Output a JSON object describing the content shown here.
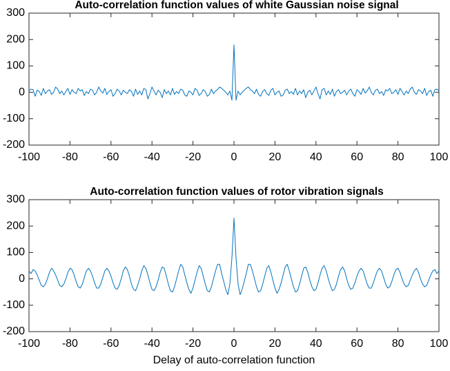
{
  "chart_data": [
    {
      "type": "line",
      "title": "Auto-correlation function values of white Gaussian noise signal",
      "xlim": [
        -100,
        100
      ],
      "ylim": [
        -200,
        300
      ],
      "xticks": [
        -100,
        -80,
        -60,
        -40,
        -20,
        0,
        20,
        40,
        60,
        80,
        100
      ],
      "yticks": [
        -200,
        -100,
        0,
        100,
        200,
        300
      ],
      "x": [
        -100,
        -99,
        -98,
        -97,
        -96,
        -95,
        -94,
        -93,
        -92,
        -91,
        -90,
        -89,
        -88,
        -87,
        -86,
        -85,
        -84,
        -83,
        -82,
        -81,
        -80,
        -79,
        -78,
        -77,
        -76,
        -75,
        -74,
        -73,
        -72,
        -71,
        -70,
        -69,
        -68,
        -67,
        -66,
        -65,
        -64,
        -63,
        -62,
        -61,
        -60,
        -59,
        -58,
        -57,
        -56,
        -55,
        -54,
        -53,
        -52,
        -51,
        -50,
        -49,
        -48,
        -47,
        -46,
        -45,
        -44,
        -43,
        -42,
        -41,
        -40,
        -39,
        -38,
        -37,
        -36,
        -35,
        -34,
        -33,
        -32,
        -31,
        -30,
        -29,
        -28,
        -27,
        -26,
        -25,
        -24,
        -23,
        -22,
        -21,
        -20,
        -19,
        -18,
        -17,
        -16,
        -15,
        -14,
        -13,
        -12,
        -11,
        -10,
        -9,
        -8,
        -7,
        -6,
        -5,
        -4,
        -3,
        -2,
        -1,
        0,
        1,
        2,
        3,
        4,
        5,
        6,
        7,
        8,
        9,
        10,
        11,
        12,
        13,
        14,
        15,
        16,
        17,
        18,
        19,
        20,
        21,
        22,
        23,
        24,
        25,
        26,
        27,
        28,
        29,
        30,
        31,
        32,
        33,
        34,
        35,
        36,
        37,
        38,
        39,
        40,
        41,
        42,
        43,
        44,
        45,
        46,
        47,
        48,
        49,
        50,
        51,
        52,
        53,
        54,
        55,
        56,
        57,
        58,
        59,
        60,
        61,
        62,
        63,
        64,
        65,
        66,
        67,
        68,
        69,
        70,
        71,
        72,
        73,
        74,
        75,
        76,
        77,
        78,
        79,
        80,
        81,
        82,
        83,
        84,
        85,
        86,
        87,
        88,
        89,
        90,
        91,
        92,
        93,
        94,
        95,
        96,
        97,
        98,
        99,
        100
      ],
      "series": [
        {
          "color": "#0072bd",
          "values": [
            5,
            12,
            10,
            -15,
            8,
            3,
            -12,
            15,
            -5,
            5,
            10,
            -8,
            0,
            20,
            12,
            -5,
            5,
            -10,
            3,
            15,
            -8,
            10,
            0,
            -5,
            15,
            5,
            10,
            -12,
            3,
            -5,
            12,
            8,
            -10,
            0,
            20,
            5,
            -3,
            15,
            -8,
            3,
            10,
            -15,
            -5,
            12,
            5,
            -10,
            8,
            0,
            -5,
            10,
            3,
            -15,
            12,
            -8,
            5,
            -10,
            15,
            10,
            -25,
            -5,
            20,
            5,
            -10,
            8,
            0,
            -20,
            10,
            -5,
            5,
            -10,
            15,
            -8,
            3,
            -5,
            12,
            8,
            -10,
            -15,
            5,
            0,
            -10,
            15,
            8,
            -12,
            -5,
            10,
            3,
            -15,
            -8,
            12,
            -5,
            5,
            10,
            20,
            15,
            8,
            0,
            -10,
            5,
            -30,
            180,
            -30,
            5,
            -10,
            0,
            8,
            15,
            20,
            10,
            5,
            -5,
            12,
            -8,
            -15,
            3,
            10,
            -5,
            -12,
            8,
            15,
            -10,
            0,
            5,
            -15,
            -10,
            8,
            12,
            -5,
            3,
            -8,
            15,
            -10,
            5,
            -5,
            10,
            -20,
            0,
            8,
            -10,
            5,
            20,
            -5,
            -25,
            10,
            15,
            -10,
            5,
            -8,
            12,
            -15,
            3,
            10,
            -5,
            0,
            8,
            -10,
            5,
            12,
            -5,
            -15,
            10,
            3,
            -8,
            15,
            -3,
            5,
            20,
            0,
            -10,
            8,
            12,
            -5,
            3,
            -12,
            10,
            5,
            15,
            -5,
            0,
            10,
            -8,
            15,
            3,
            -10,
            5,
            -5,
            12,
            20,
            0,
            -8,
            10,
            5,
            -5,
            15,
            -12,
            3,
            8,
            -15,
            10,
            12,
            5
          ]
        }
      ]
    },
    {
      "type": "line",
      "title": "Auto-correlation function values of rotor vibration signals",
      "xlabel": "Delay of auto-correlation function",
      "xlim": [
        -100,
        100
      ],
      "ylim": [
        -200,
        300
      ],
      "xticks": [
        -100,
        -80,
        -60,
        -40,
        -20,
        0,
        20,
        40,
        60,
        80,
        100
      ],
      "yticks": [
        -200,
        -100,
        0,
        100,
        200,
        300
      ],
      "x": [
        -100,
        -99,
        -98,
        -97,
        -96,
        -95,
        -94,
        -93,
        -92,
        -91,
        -90,
        -89,
        -88,
        -87,
        -86,
        -85,
        -84,
        -83,
        -82,
        -81,
        -80,
        -79,
        -78,
        -77,
        -76,
        -75,
        -74,
        -73,
        -72,
        -71,
        -70,
        -69,
        -68,
        -67,
        -66,
        -65,
        -64,
        -63,
        -62,
        -61,
        -60,
        -59,
        -58,
        -57,
        -56,
        -55,
        -54,
        -53,
        -52,
        -51,
        -50,
        -49,
        -48,
        -47,
        -46,
        -45,
        -44,
        -43,
        -42,
        -41,
        -40,
        -39,
        -38,
        -37,
        -36,
        -35,
        -34,
        -33,
        -32,
        -31,
        -30,
        -29,
        -28,
        -27,
        -26,
        -25,
        -24,
        -23,
        -22,
        -21,
        -20,
        -19,
        -18,
        -17,
        -16,
        -15,
        -14,
        -13,
        -12,
        -11,
        -10,
        -9,
        -8,
        -7,
        -6,
        -5,
        -4,
        -3,
        -2,
        -1,
        0,
        1,
        2,
        3,
        4,
        5,
        6,
        7,
        8,
        9,
        10,
        11,
        12,
        13,
        14,
        15,
        16,
        17,
        18,
        19,
        20,
        21,
        22,
        23,
        24,
        25,
        26,
        27,
        28,
        29,
        30,
        31,
        32,
        33,
        34,
        35,
        36,
        37,
        38,
        39,
        40,
        41,
        42,
        43,
        44,
        45,
        46,
        47,
        48,
        49,
        50,
        51,
        52,
        53,
        54,
        55,
        56,
        57,
        58,
        59,
        60,
        61,
        62,
        63,
        64,
        65,
        66,
        67,
        68,
        69,
        70,
        71,
        72,
        73,
        74,
        75,
        76,
        77,
        78,
        79,
        80,
        81,
        82,
        83,
        84,
        85,
        86,
        87,
        88,
        89,
        90,
        91,
        92,
        93,
        94,
        95,
        96,
        97,
        98,
        99,
        100
      ],
      "series": [
        {
          "color": "#0072bd",
          "values": [
            30,
            20,
            35,
            30,
            15,
            -5,
            -25,
            -30,
            -20,
            0,
            25,
            40,
            30,
            15,
            -5,
            -25,
            -30,
            -20,
            0,
            25,
            40,
            35,
            15,
            -10,
            -30,
            -35,
            -20,
            5,
            30,
            40,
            30,
            10,
            -15,
            -35,
            -35,
            -20,
            5,
            30,
            40,
            30,
            10,
            -15,
            -35,
            -40,
            -25,
            0,
            30,
            45,
            35,
            10,
            -20,
            -40,
            -45,
            -25,
            0,
            30,
            50,
            40,
            15,
            -15,
            -40,
            -45,
            -30,
            -5,
            25,
            45,
            40,
            10,
            -20,
            -45,
            -50,
            -30,
            0,
            30,
            55,
            45,
            15,
            -15,
            -40,
            -55,
            -35,
            -5,
            25,
            50,
            40,
            10,
            -20,
            -45,
            -50,
            -30,
            0,
            30,
            55,
            55,
            20,
            -10,
            -40,
            -60,
            -20,
            80,
            230,
            80,
            -20,
            -60,
            -40,
            -10,
            20,
            55,
            55,
            30,
            0,
            -30,
            -50,
            -45,
            -20,
            10,
            40,
            50,
            25,
            -5,
            -35,
            -55,
            -40,
            -15,
            15,
            45,
            55,
            30,
            0,
            -30,
            -50,
            -45,
            -20,
            10,
            40,
            45,
            25,
            -5,
            -30,
            -45,
            -40,
            -15,
            15,
            40,
            50,
            30,
            0,
            -25,
            -45,
            -40,
            -20,
            10,
            35,
            45,
            30,
            0,
            -25,
            -40,
            -35,
            -15,
            10,
            30,
            40,
            30,
            5,
            -20,
            -35,
            -35,
            -15,
            10,
            30,
            40,
            30,
            5,
            -20,
            -35,
            -30,
            -10,
            15,
            35,
            40,
            25,
            0,
            -20,
            -30,
            -25,
            -5,
            15,
            30,
            40,
            25,
            0,
            -20,
            -30,
            -25,
            -5,
            15,
            30,
            35,
            20,
            30
          ]
        }
      ]
    }
  ]
}
